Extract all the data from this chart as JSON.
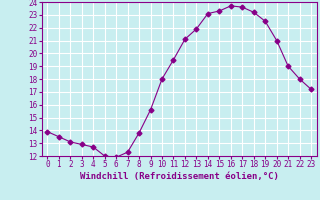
{
  "x": [
    0,
    1,
    2,
    3,
    4,
    5,
    6,
    7,
    8,
    9,
    10,
    11,
    12,
    13,
    14,
    15,
    16,
    17,
    18,
    19,
    20,
    21,
    22,
    23
  ],
  "y": [
    13.9,
    13.5,
    13.1,
    12.9,
    12.7,
    12.0,
    11.9,
    12.3,
    13.8,
    15.6,
    18.0,
    19.5,
    21.1,
    21.9,
    23.1,
    23.3,
    23.7,
    23.6,
    23.2,
    22.5,
    21.0,
    19.0,
    18.0,
    17.2
  ],
  "line_color": "#880088",
  "marker": "D",
  "marker_size": 2.5,
  "xlabel": "Windchill (Refroidissement éolien,°C)",
  "xlabel_fontsize": 6.5,
  "background_color": "#c8eef0",
  "grid_color": "#ffffff",
  "ylim": [
    12,
    24
  ],
  "xlim": [
    -0.5,
    23.5
  ],
  "yticks": [
    12,
    13,
    14,
    15,
    16,
    17,
    18,
    19,
    20,
    21,
    22,
    23,
    24
  ],
  "xticks": [
    0,
    1,
    2,
    3,
    4,
    5,
    6,
    7,
    8,
    9,
    10,
    11,
    12,
    13,
    14,
    15,
    16,
    17,
    18,
    19,
    20,
    21,
    22,
    23
  ],
  "tick_fontsize": 5.5,
  "tick_color": "#880088",
  "axis_color": "#880088"
}
